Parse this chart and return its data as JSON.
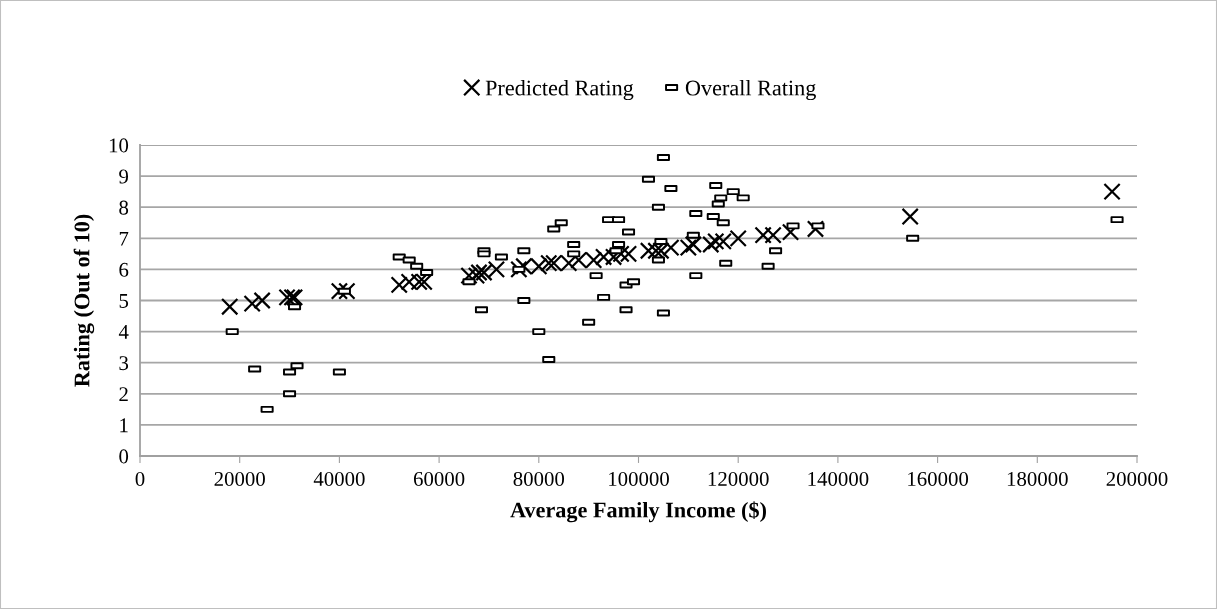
{
  "chart_data": {
    "type": "scatter",
    "xlabel": "Average Family Income ($)",
    "ylabel": "Rating (Out of 10)",
    "xlim": [
      0,
      200000
    ],
    "xticks": [
      0,
      20000,
      40000,
      60000,
      80000,
      100000,
      120000,
      140000,
      160000,
      180000,
      200000
    ],
    "ylim": [
      0,
      10
    ],
    "yticks": [
      0,
      1,
      2,
      3,
      4,
      5,
      6,
      7,
      8,
      9,
      10
    ],
    "grid": "y",
    "legend": "top",
    "series": [
      {
        "name": "Predicted Rating",
        "color": "#000000",
        "marker": "cross",
        "x": [
          18000,
          22500,
          24500,
          29500,
          30500,
          31000,
          40000,
          41500,
          52000,
          54000,
          56000,
          57000,
          66000,
          67500,
          68000,
          69000,
          71500,
          76000,
          77000,
          80000,
          82000,
          83000,
          86000,
          88000,
          91000,
          93000,
          95000,
          96500,
          98000,
          102000,
          103500,
          104500,
          106500,
          110000,
          111000,
          114500,
          115500,
          117000,
          120000,
          125000,
          127000,
          130500,
          135500,
          154500,
          195000
        ],
        "values": [
          4.8,
          4.9,
          5.0,
          5.1,
          5.1,
          5.1,
          5.3,
          5.3,
          5.5,
          5.6,
          5.6,
          5.6,
          5.8,
          5.8,
          5.9,
          5.9,
          6.0,
          6.0,
          6.1,
          6.1,
          6.2,
          6.2,
          6.2,
          6.3,
          6.3,
          6.4,
          6.4,
          6.5,
          6.5,
          6.6,
          6.6,
          6.6,
          6.7,
          6.7,
          6.8,
          6.8,
          6.9,
          6.9,
          7.0,
          7.1,
          7.1,
          7.2,
          7.3,
          7.7,
          8.5
        ]
      },
      {
        "name": "Overall Rating",
        "color": "#000000",
        "marker": "square",
        "x": [
          18500,
          23000,
          25500,
          30000,
          30000,
          31000,
          31500,
          40000,
          41000,
          52000,
          54000,
          55500,
          57500,
          66000,
          68500,
          69000,
          69000,
          72500,
          77000,
          77000,
          76000,
          80000,
          82000,
          83000,
          84500,
          87000,
          87000,
          90000,
          91500,
          93000,
          94000,
          96000,
          96000,
          95500,
          97500,
          97500,
          98000,
          99000,
          102000,
          104000,
          104000,
          104500,
          105000,
          105000,
          106500,
          111000,
          111500,
          111500,
          115500,
          115000,
          116000,
          116500,
          117000,
          117500,
          119000,
          121000,
          126000,
          127500,
          131000,
          136000,
          155000,
          196000
        ],
        "values": [
          4.0,
          2.8,
          1.5,
          2.7,
          2.0,
          4.8,
          2.9,
          2.7,
          5.3,
          6.4,
          6.3,
          6.1,
          5.9,
          5.6,
          4.7,
          6.6,
          6.5,
          6.4,
          6.6,
          5.0,
          6.0,
          4.0,
          3.1,
          7.3,
          7.5,
          6.8,
          6.5,
          4.3,
          5.8,
          5.1,
          7.6,
          7.6,
          6.8,
          6.6,
          5.5,
          4.7,
          7.2,
          5.6,
          8.9,
          6.3,
          8.0,
          6.9,
          9.6,
          4.6,
          8.6,
          7.1,
          7.8,
          5.8,
          8.7,
          7.7,
          8.1,
          8.3,
          7.5,
          6.2,
          8.5,
          8.3,
          6.1,
          6.6,
          7.4,
          7.4,
          7.0,
          7.6
        ]
      }
    ]
  }
}
